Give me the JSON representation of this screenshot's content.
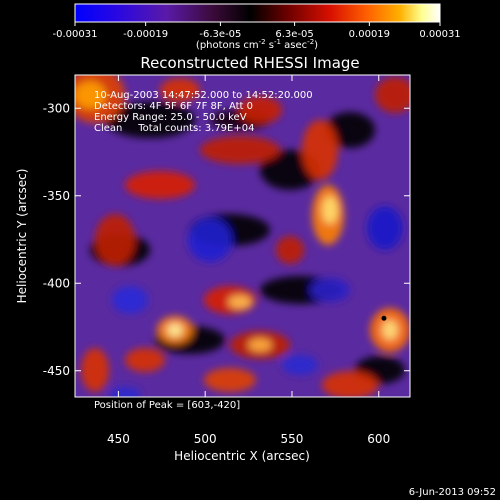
{
  "colorbar": {
    "tick_labels": [
      "-0.00031",
      "-0.00019",
      "-6.3e-05",
      "6.3e-05",
      "0.00019",
      "0.00031"
    ],
    "tick_values": [
      -0.00031,
      -0.00019,
      -6.3e-05,
      6.3e-05,
      0.00019,
      0.00031
    ],
    "range": [
      -0.00031,
      0.00031
    ],
    "units_label": "(photons cm",
    "units_exp1": "-2",
    "units_mid": " s",
    "units_exp2": "-1",
    "units_tail": " asec",
    "units_exp3": "-2",
    "units_close": ")",
    "colors": [
      "#0000ff",
      "#3a00c8",
      "#6a2090",
      "#3a0a20",
      "#000000",
      "#7a0000",
      "#d81000",
      "#ff6000",
      "#ffb000",
      "#ffff90",
      "#ffffff"
    ]
  },
  "chart_data": {
    "type": "heatmap",
    "title": "Reconstructed RHESSI Image",
    "xlabel": "Heliocentric X (arcsec)",
    "ylabel": "Heliocentric Y (arcsec)",
    "xlim": [
      425,
      618
    ],
    "ylim": [
      -465,
      -281
    ],
    "x_ticks": [
      450,
      500,
      550,
      600
    ],
    "y_ticks": [
      -300,
      -350,
      -400,
      -450
    ],
    "peak": [
      603,
      -420
    ],
    "annotations": [
      "10-Aug-2003 14:47:52.000 to 14:52:20.000",
      "Detectors: 4F 5F 6F 7F 8F, Att 0",
      "Energy Range: 25.0 - 50.0 keV",
      "Clean     Total counts: 3.79E+04"
    ],
    "peak_label": "Position of Peak = [603,-420]"
  },
  "footer": {
    "timestamp": "6-Jun-2013 09:52"
  }
}
